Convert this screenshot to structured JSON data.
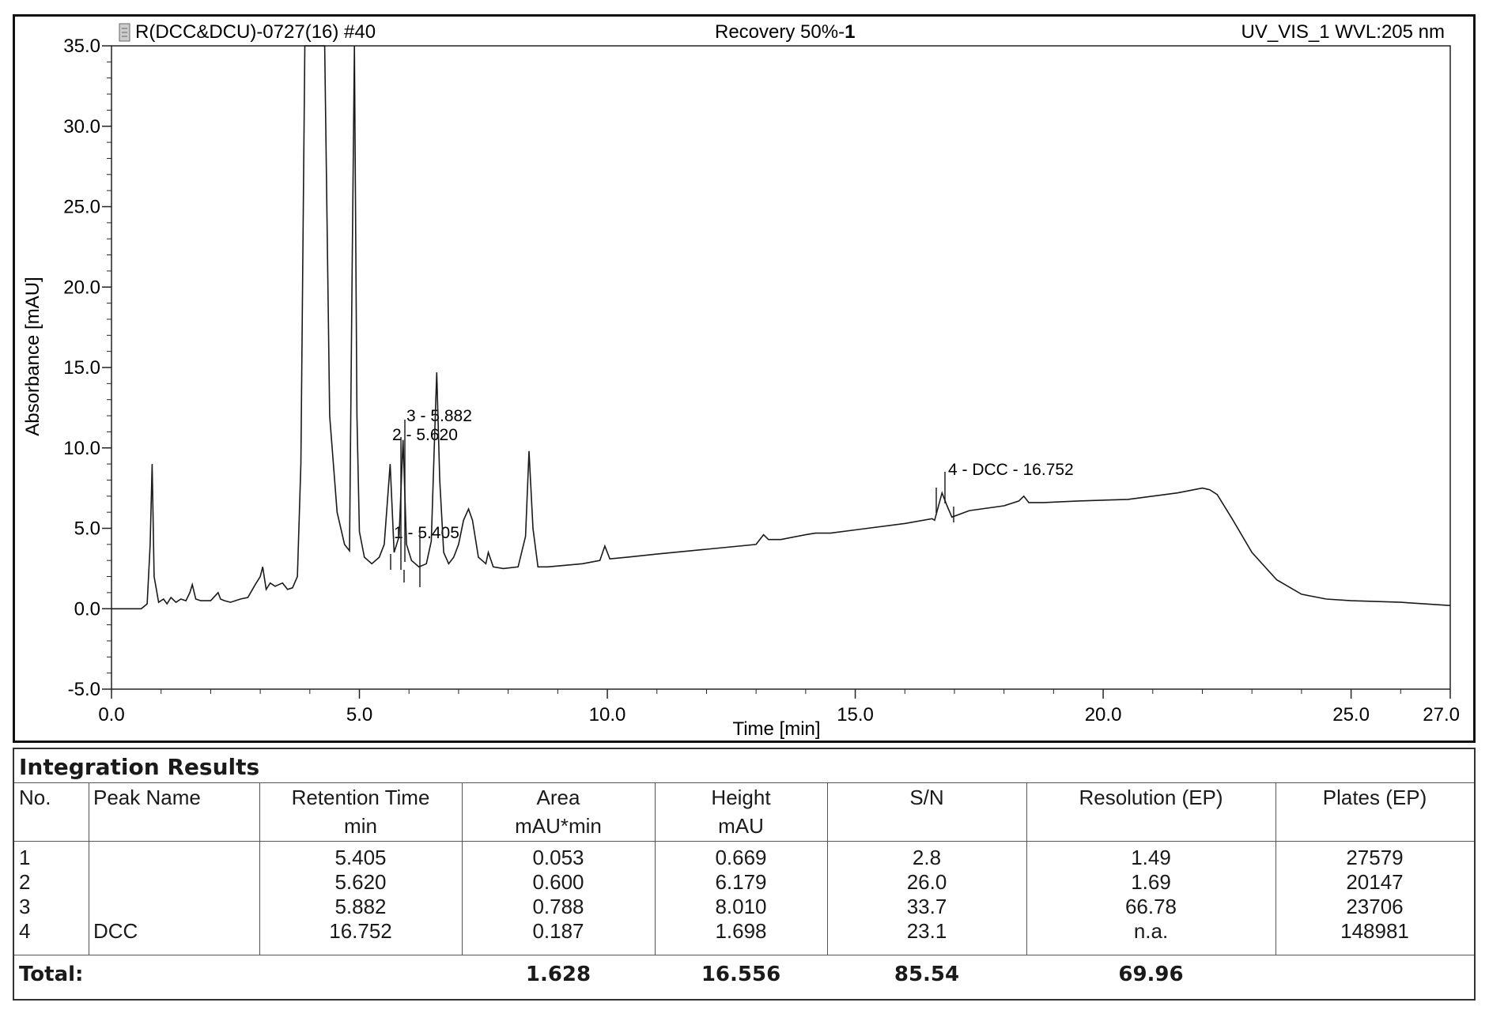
{
  "header": {
    "sample_name": "R(DCC&DCU)-0727(16) #40",
    "title_prefix": "Recovery 50%-",
    "title_suffix": "1",
    "detector": "UV_VIS_1 WVL:205 nm"
  },
  "chart_data": {
    "type": "line",
    "xlabel": "Time [min]",
    "ylabel": "Absorbance [mAU]",
    "xlim": [
      0.0,
      27.0
    ],
    "ylim": [
      -5.0,
      35.0
    ],
    "x_ticks": [
      "0.0",
      "5.0",
      "10.0",
      "15.0",
      "20.0",
      "25.0",
      "27.0"
    ],
    "y_ticks": [
      "35.0",
      "30.0",
      "25.0",
      "20.0",
      "15.0",
      "10.0",
      "5.0",
      "0.0",
      "-5.0"
    ],
    "grid": false,
    "series": [
      {
        "x": [
          0.0,
          0.6,
          0.72,
          0.78,
          0.82,
          0.86,
          0.95,
          1.05,
          1.12,
          1.2,
          1.3,
          1.4,
          1.5,
          1.58,
          1.63,
          1.7,
          1.8,
          2.0,
          2.15,
          2.2,
          2.28,
          2.4,
          2.6,
          2.75,
          2.9,
          3.0,
          3.05,
          3.12,
          3.2,
          3.3,
          3.45,
          3.55,
          3.65,
          3.75,
          3.82,
          3.9,
          4.0,
          4.3,
          4.4,
          4.55,
          4.7,
          4.8,
          4.85,
          4.9,
          4.95,
          5.0,
          5.1,
          5.25,
          5.4,
          5.5,
          5.62,
          5.7,
          5.8,
          5.88,
          5.95,
          6.05,
          6.2,
          6.35,
          6.45,
          6.52,
          6.56,
          6.62,
          6.7,
          6.8,
          6.9,
          7.0,
          7.1,
          7.2,
          7.28,
          7.4,
          7.55,
          7.6,
          7.7,
          7.9,
          8.2,
          8.35,
          8.42,
          8.5,
          8.6,
          8.8,
          9.5,
          9.85,
          9.95,
          10.05,
          10.4,
          11.0,
          12.0,
          13.0,
          13.15,
          13.25,
          13.5,
          14.0,
          14.2,
          14.5,
          15.0,
          16.0,
          16.55,
          16.6,
          16.75,
          16.85,
          16.95,
          17.3,
          18.0,
          18.3,
          18.4,
          18.5,
          18.8,
          19.5,
          20.5,
          21.5,
          22.0,
          22.15,
          22.3,
          22.6,
          23.0,
          23.5,
          24.0,
          24.5,
          25.0,
          26.0,
          27.0
        ],
        "y": [
          0.0,
          0.0,
          0.3,
          4.0,
          9.0,
          2.0,
          0.4,
          0.6,
          0.3,
          0.7,
          0.4,
          0.6,
          0.5,
          1.0,
          1.5,
          0.6,
          0.5,
          0.5,
          1.0,
          0.6,
          0.5,
          0.4,
          0.6,
          0.7,
          1.5,
          2.0,
          2.6,
          1.2,
          1.6,
          1.4,
          1.6,
          1.2,
          1.3,
          2.0,
          9.0,
          35.0,
          35.0,
          35.0,
          12.0,
          6.0,
          4.0,
          3.6,
          20.0,
          35.0,
          12.0,
          4.8,
          3.2,
          2.8,
          3.2,
          4.0,
          9.0,
          3.5,
          4.5,
          10.5,
          4.0,
          3.0,
          2.6,
          2.8,
          4.2,
          11.0,
          14.7,
          8.0,
          3.5,
          2.8,
          3.2,
          4.0,
          5.5,
          6.2,
          5.5,
          3.2,
          2.8,
          3.5,
          2.6,
          2.5,
          2.6,
          4.5,
          9.8,
          5.0,
          2.6,
          2.6,
          2.8,
          3.0,
          3.9,
          3.1,
          3.2,
          3.4,
          3.7,
          4.0,
          4.6,
          4.3,
          4.3,
          4.6,
          4.7,
          4.7,
          4.9,
          5.3,
          5.6,
          5.5,
          7.2,
          6.4,
          5.7,
          6.1,
          6.4,
          6.7,
          7.0,
          6.6,
          6.6,
          6.7,
          6.8,
          7.2,
          7.5,
          7.4,
          7.1,
          5.6,
          3.5,
          1.8,
          0.9,
          0.6,
          0.5,
          0.4,
          0.2
        ]
      }
    ],
    "annotations": [
      "1 - 5.405",
      "2 - 5.620",
      "3 - 5.882",
      "4 - DCC - 16.752"
    ]
  },
  "table": {
    "title": "Integration Results",
    "headers": [
      [
        "No.",
        ""
      ],
      [
        "Peak Name",
        ""
      ],
      [
        "Retention Time",
        "min"
      ],
      [
        "Area",
        "mAU*min"
      ],
      [
        "Height",
        "mAU"
      ],
      [
        "S/N",
        ""
      ],
      [
        "Resolution (EP)",
        ""
      ],
      [
        "Plates (EP)",
        ""
      ]
    ],
    "rows": [
      [
        "1",
        "",
        "5.405",
        "0.053",
        "0.669",
        "2.8",
        "1.49",
        "27579"
      ],
      [
        "2",
        "",
        "5.620",
        "0.600",
        "6.179",
        "26.0",
        "1.69",
        "20147"
      ],
      [
        "3",
        "",
        "5.882",
        "0.788",
        "8.010",
        "33.7",
        "66.78",
        "23706"
      ],
      [
        "4",
        "DCC",
        "16.752",
        "0.187",
        "1.698",
        "23.1",
        "n.a.",
        "148981"
      ]
    ],
    "total": [
      "Total:",
      "",
      "",
      "1.628",
      "16.556",
      "85.54",
      "69.96",
      ""
    ]
  }
}
